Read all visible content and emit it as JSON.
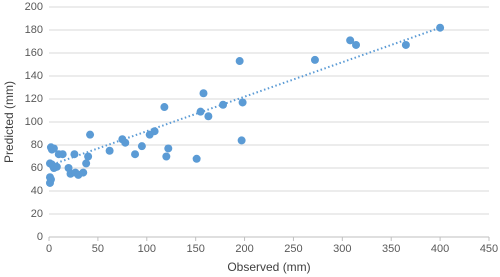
{
  "chart_data": {
    "type": "scatter",
    "x_label": "Observed (mm)",
    "y_label": "Predicted (mm)",
    "series": [
      {
        "color": "#5b9bd5",
        "x": [
          2,
          3,
          5,
          1,
          3,
          5,
          1,
          2,
          1,
          8,
          10,
          14,
          20,
          22,
          26,
          27,
          30,
          35,
          38,
          40,
          42,
          62,
          75,
          78,
          88,
          95,
          103,
          108,
          118,
          120,
          122,
          151,
          155,
          158,
          163,
          178,
          195,
          197,
          198,
          272,
          308,
          314,
          365,
          400
        ],
        "values": [
          78,
          76,
          77,
          64,
          63,
          60,
          52,
          50,
          47,
          61,
          72,
          72,
          60,
          55,
          72,
          56,
          54,
          56,
          64,
          70,
          89,
          75,
          85,
          82,
          72,
          79,
          89,
          92,
          113,
          70,
          77,
          68,
          109,
          125,
          105,
          115,
          153,
          84,
          117,
          154,
          171,
          167,
          167,
          182
        ]
      }
    ],
    "trendline": {
      "color": "#5b9bd5",
      "x": [
        0,
        400
      ],
      "values": [
        62,
        182
      ]
    },
    "xlim": [
      0,
      450
    ],
    "xticks": [
      0,
      50,
      100,
      150,
      200,
      250,
      300,
      350,
      400,
      450
    ],
    "ylim": [
      0,
      200
    ],
    "yticks": [
      0,
      20,
      40,
      60,
      80,
      100,
      120,
      140,
      160,
      180,
      200
    ],
    "grid": true
  }
}
